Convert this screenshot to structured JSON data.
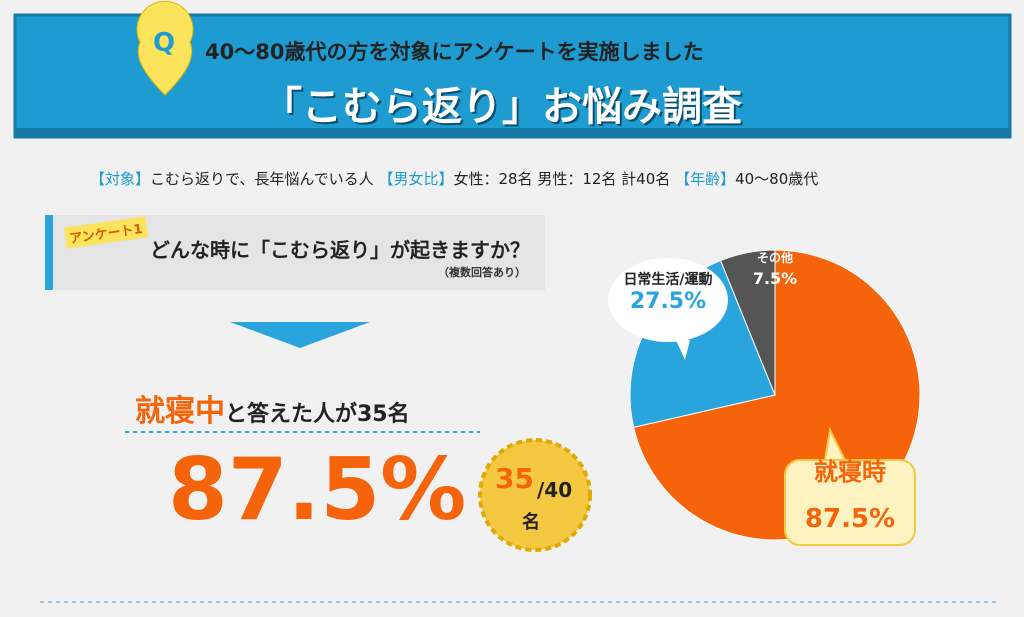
{
  "header": {
    "icon": "Q",
    "subtitle": "40〜80歳代の方を対象にアンケートを実施しました",
    "title": "「こむら返り」お悩み調査"
  },
  "info": [
    {
      "key": "【対象】",
      "text": "こむら返りで、長年悩んでいる人"
    },
    {
      "key": "【男女比】",
      "text": "女性：28名 男性：12名 計40名"
    },
    {
      "key": "【年齢】",
      "text": "40〜80歳代"
    }
  ],
  "question": {
    "tag": "アンケート1",
    "text": "どんな時に「こむら返り」が起きますか？",
    "note": "（複数回答あり）"
  },
  "result": {
    "highlight": "就寝中",
    "text": "と答えた人が35名",
    "percent": "87.5%",
    "badge_count": "35",
    "badge_total": "/40",
    "badge_unit": "名"
  },
  "chart_data": {
    "type": "pie",
    "categories": [
      "就寝時",
      "日常生活/運動",
      "その他"
    ],
    "values": [
      87.5,
      27.5,
      7.5
    ],
    "value_labels": [
      "87.5%",
      "27.5%",
      "7.5%"
    ],
    "colors": [
      "#f5640a",
      "#2aa4dc",
      "#555555"
    ]
  }
}
